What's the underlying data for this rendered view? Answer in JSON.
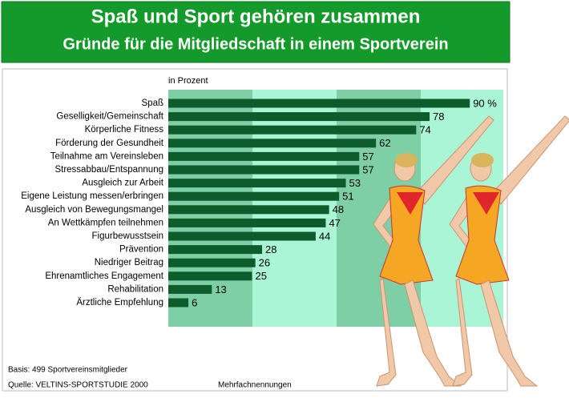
{
  "chart_data": {
    "type": "bar",
    "orientation": "horizontal",
    "title": "Spaß und Sport gehören zusammen",
    "subtitle": "Gründe für die Mitgliedschaft in einem Sportverein",
    "unit_label": "in Prozent",
    "categories": [
      "Spaß",
      "Geselligkeit/Gemeinschaft",
      "Körperliche Fitness",
      "Förderung der Gesundheit",
      "Teilnahme am Vereinsleben",
      "Stressabbau/Entspannung",
      "Ausgleich zur Arbeit",
      "Eigene Leistung messen/erbringen",
      "Ausgleich von Bewegungsmangel",
      "An Wettkämpfen teilnehmen",
      "Figurbewusstsein",
      "Prävention",
      "Niedriger Beitrag",
      "Ehrenamtliches Engagement",
      "Rehabilitation",
      "Ärztliche Empfehlung"
    ],
    "values": [
      90,
      78,
      74,
      62,
      57,
      57,
      53,
      51,
      48,
      47,
      44,
      28,
      26,
      25,
      13,
      6
    ],
    "value_labels": [
      "90 %",
      "78",
      "74",
      "62",
      "57",
      "57",
      "53",
      "51",
      "48",
      "47",
      "44",
      "28",
      "26",
      "25",
      "13",
      "6"
    ],
    "color": "#0e5b2c",
    "xlim": [
      0,
      100
    ],
    "footnotes": [
      "Basis: 499 Sportvereinsmitglieder",
      "Quelle: VELTINS-SPORTSTUDIE 2000",
      "Mehrfachnennungen"
    ]
  }
}
